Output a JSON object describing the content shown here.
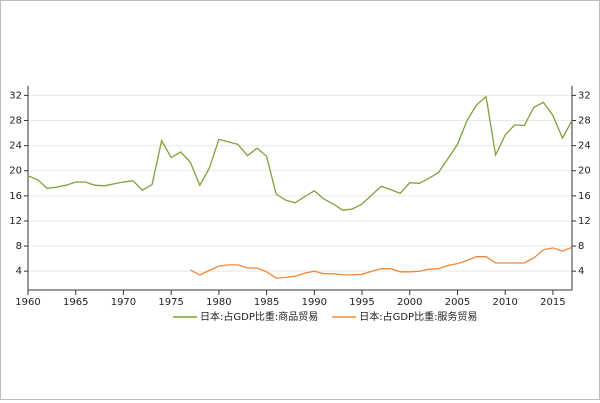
{
  "chart_data": {
    "type": "line",
    "x": [
      1960,
      1961,
      1962,
      1963,
      1964,
      1965,
      1966,
      1967,
      1968,
      1969,
      1970,
      1971,
      1972,
      1973,
      1974,
      1975,
      1976,
      1977,
      1978,
      1979,
      1980,
      1981,
      1982,
      1983,
      1984,
      1985,
      1986,
      1987,
      1988,
      1989,
      1990,
      1991,
      1992,
      1993,
      1994,
      1995,
      1996,
      1997,
      1998,
      1999,
      2000,
      2001,
      2002,
      2003,
      2004,
      2005,
      2006,
      2007,
      2008,
      2009,
      2010,
      2011,
      2012,
      2013,
      2014,
      2015,
      2016,
      2017
    ],
    "series": [
      {
        "name": "日本:占GDP比重:商品贸易",
        "color": "#7fa03a",
        "values": [
          19.2,
          18.6,
          17.2,
          17.4,
          17.7,
          18.2,
          18.2,
          17.7,
          17.6,
          17.9,
          18.2,
          18.4,
          16.9,
          17.8,
          24.8,
          22.1,
          23.0,
          21.4,
          17.7,
          20.4,
          25.0,
          24.6,
          24.2,
          22.4,
          23.6,
          22.3,
          16.3,
          15.3,
          14.9,
          15.9,
          16.8,
          15.5,
          14.7,
          13.7,
          13.9,
          14.7,
          16.1,
          17.5,
          17.0,
          16.4,
          18.1,
          18.0,
          18.8,
          19.7,
          21.9,
          24.2,
          28.0,
          30.5,
          31.8,
          22.5,
          25.7,
          27.3,
          27.2,
          30.1,
          30.9,
          28.8,
          25.2,
          28.0
        ]
      },
      {
        "name": "日本:占GDP比重:服务贸易",
        "color": "#f0883a",
        "values": [
          null,
          null,
          null,
          null,
          null,
          null,
          null,
          null,
          null,
          null,
          null,
          null,
          null,
          null,
          null,
          null,
          null,
          4.2,
          3.4,
          4.1,
          4.8,
          5.0,
          5.0,
          4.5,
          4.5,
          3.9,
          2.9,
          3.0,
          3.2,
          3.7,
          4.0,
          3.6,
          3.6,
          3.4,
          3.4,
          3.5,
          4.0,
          4.4,
          4.4,
          3.9,
          3.9,
          4.0,
          4.3,
          4.4,
          4.9,
          5.2,
          5.7,
          6.3,
          6.3,
          5.3,
          5.3,
          5.3,
          5.3,
          6.1,
          7.4,
          7.7,
          7.2,
          7.8
        ]
      }
    ],
    "xlim": [
      1960,
      2017
    ],
    "xticks": [
      1960,
      1965,
      1970,
      1975,
      1980,
      1985,
      1990,
      1995,
      2000,
      2005,
      2010,
      2015
    ],
    "ylim": [
      1,
      33.5
    ],
    "yticks": [
      4,
      8,
      12,
      16,
      20,
      24,
      28,
      32
    ],
    "grid": true,
    "legend": "bottom"
  }
}
